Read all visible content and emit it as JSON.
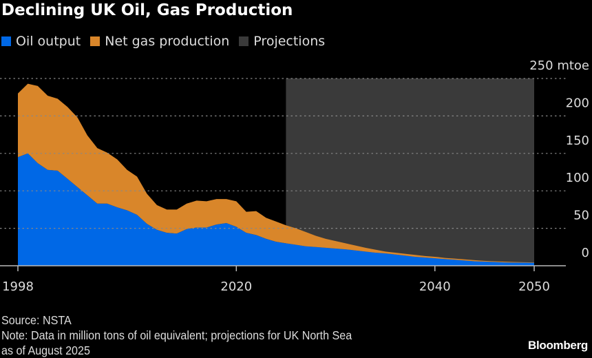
{
  "chart_data": {
    "type": "area",
    "stacked": true,
    "title": "Declining UK Oil, Gas Production",
    "ylabel": "",
    "yunit_label": "250 mtoe",
    "ylim": [
      0,
      250
    ],
    "yticks": [
      0,
      50,
      100,
      150,
      200
    ],
    "xlim": [
      1998,
      2050
    ],
    "xticks": [
      "1998",
      "2020",
      "2040",
      "2050"
    ],
    "grid": true,
    "legend_placement": "top-left",
    "projection_range": [
      2025,
      2050
    ],
    "x": [
      1998,
      1999,
      2000,
      2001,
      2002,
      2003,
      2004,
      2005,
      2006,
      2007,
      2008,
      2009,
      2010,
      2011,
      2012,
      2013,
      2014,
      2015,
      2016,
      2017,
      2018,
      2019,
      2020,
      2021,
      2022,
      2023,
      2024,
      2025,
      2026,
      2027,
      2028,
      2029,
      2030,
      2031,
      2032,
      2033,
      2034,
      2035,
      2036,
      2037,
      2038,
      2039,
      2040,
      2041,
      2042,
      2043,
      2044,
      2045,
      2046,
      2047,
      2048,
      2049,
      2050
    ],
    "series": [
      {
        "name": "Oil output",
        "color": "#0068e6",
        "values": [
          145,
          150,
          137,
          128,
          127,
          116,
          105,
          94,
          83,
          83,
          78,
          74,
          68,
          56,
          48,
          44,
          43,
          49,
          51,
          51,
          55,
          57,
          52,
          44,
          41,
          36,
          32,
          30,
          28,
          26,
          25,
          24,
          23,
          22,
          20.5,
          19,
          17.5,
          16.5,
          15,
          13.5,
          12,
          11,
          10,
          9,
          8,
          7,
          6,
          5.5,
          5,
          4.5,
          4.3,
          4.1,
          4
        ]
      },
      {
        "name": "Net gas production",
        "color": "#d9862a",
        "values": [
          85,
          93,
          103,
          99,
          96,
          96,
          93,
          80,
          74,
          68,
          64,
          54,
          51,
          40,
          33,
          31,
          32,
          34,
          36,
          35,
          34,
          32,
          34,
          28,
          32,
          28,
          27,
          24,
          22,
          19,
          15,
          12,
          10,
          8,
          6.5,
          5,
          4,
          2.5,
          2.5,
          2.5,
          2.5,
          2,
          2,
          1.5,
          1.5,
          1.5,
          1.5,
          1,
          1,
          1,
          0.7,
          0.6,
          0.5
        ]
      }
    ],
    "projections_label": "Projections",
    "projections_color": "#3a3a3a"
  },
  "footer": {
    "source": "Source: NSTA",
    "note_line1": "Note: Data in million tons of oil equivalent; projections for UK North Sea",
    "note_line2": "as of August 2025",
    "brand": "Bloomberg"
  }
}
